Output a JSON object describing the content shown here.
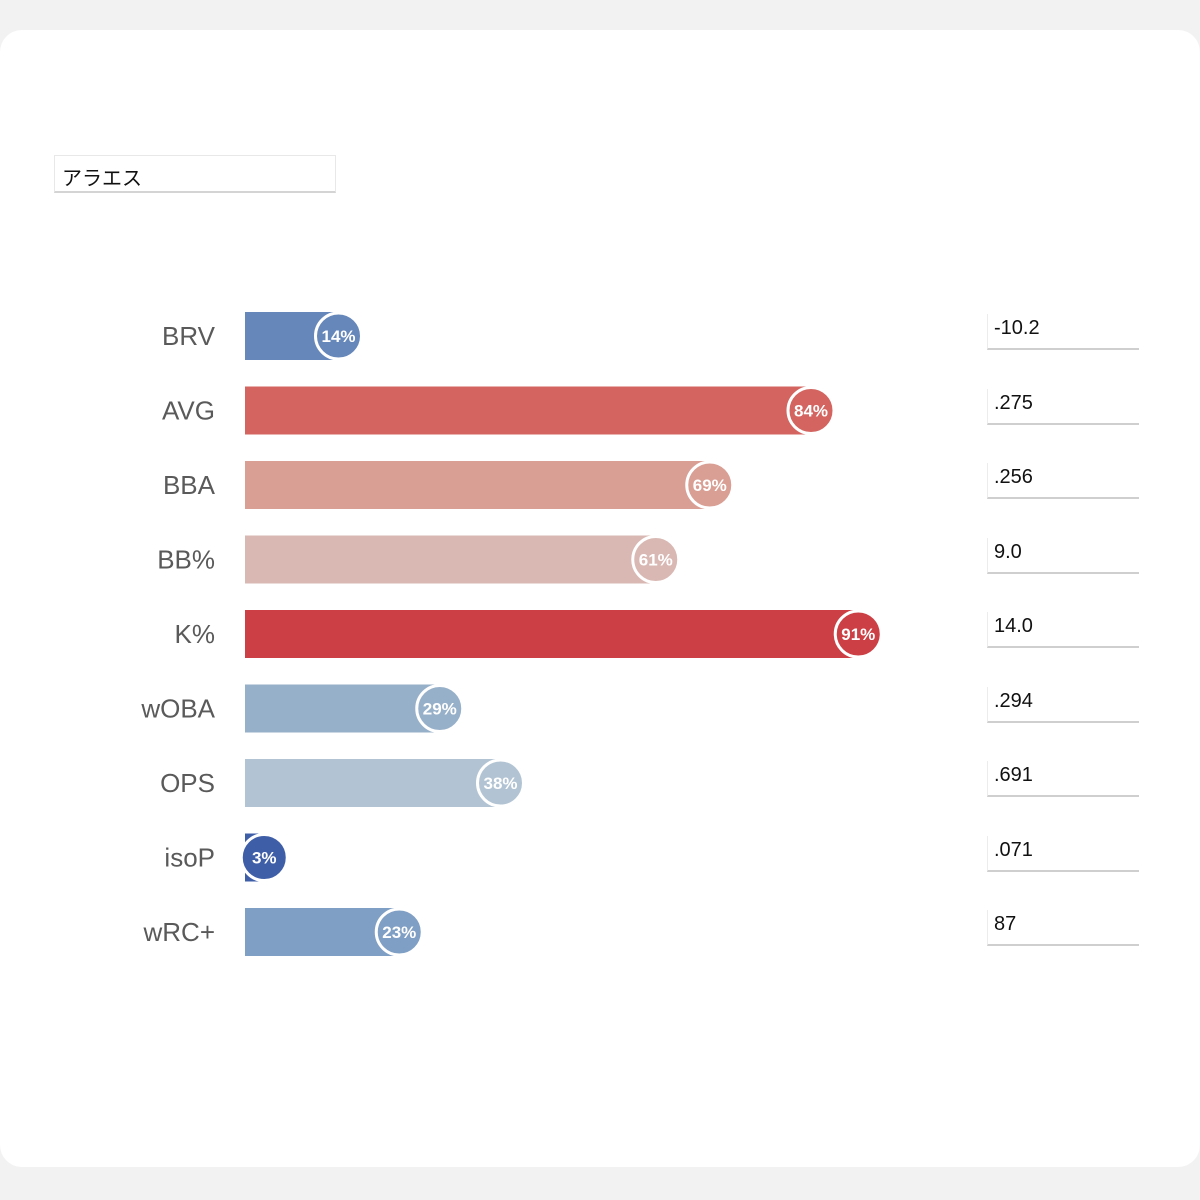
{
  "player_name": "アラエス",
  "chart_data": {
    "type": "bar",
    "orientation": "horizontal",
    "xlim": [
      0,
      100
    ],
    "unit": "percentile",
    "categories": [
      "BRV",
      "AVG",
      "BBA",
      "BB%",
      "K%",
      "wOBA",
      "OPS",
      "isoP",
      "wRC+"
    ],
    "percentiles": [
      14,
      84,
      69,
      61,
      91,
      29,
      38,
      3,
      23
    ],
    "percentile_labels": [
      "14%",
      "84%",
      "69%",
      "61%",
      "91%",
      "29%",
      "38%",
      "3%",
      "23%"
    ],
    "stat_values": [
      "-10.2",
      ".275",
      ".256",
      "9.0",
      "14.0",
      ".294",
      ".691",
      ".071",
      "87"
    ],
    "colors": [
      "#6687ba",
      "#d3645f",
      "#d99e94",
      "#d9b8b3",
      "#cc4045",
      "#97b0c9",
      "#b2c4d3",
      "#3f5ea8",
      "#809fc4"
    ]
  }
}
